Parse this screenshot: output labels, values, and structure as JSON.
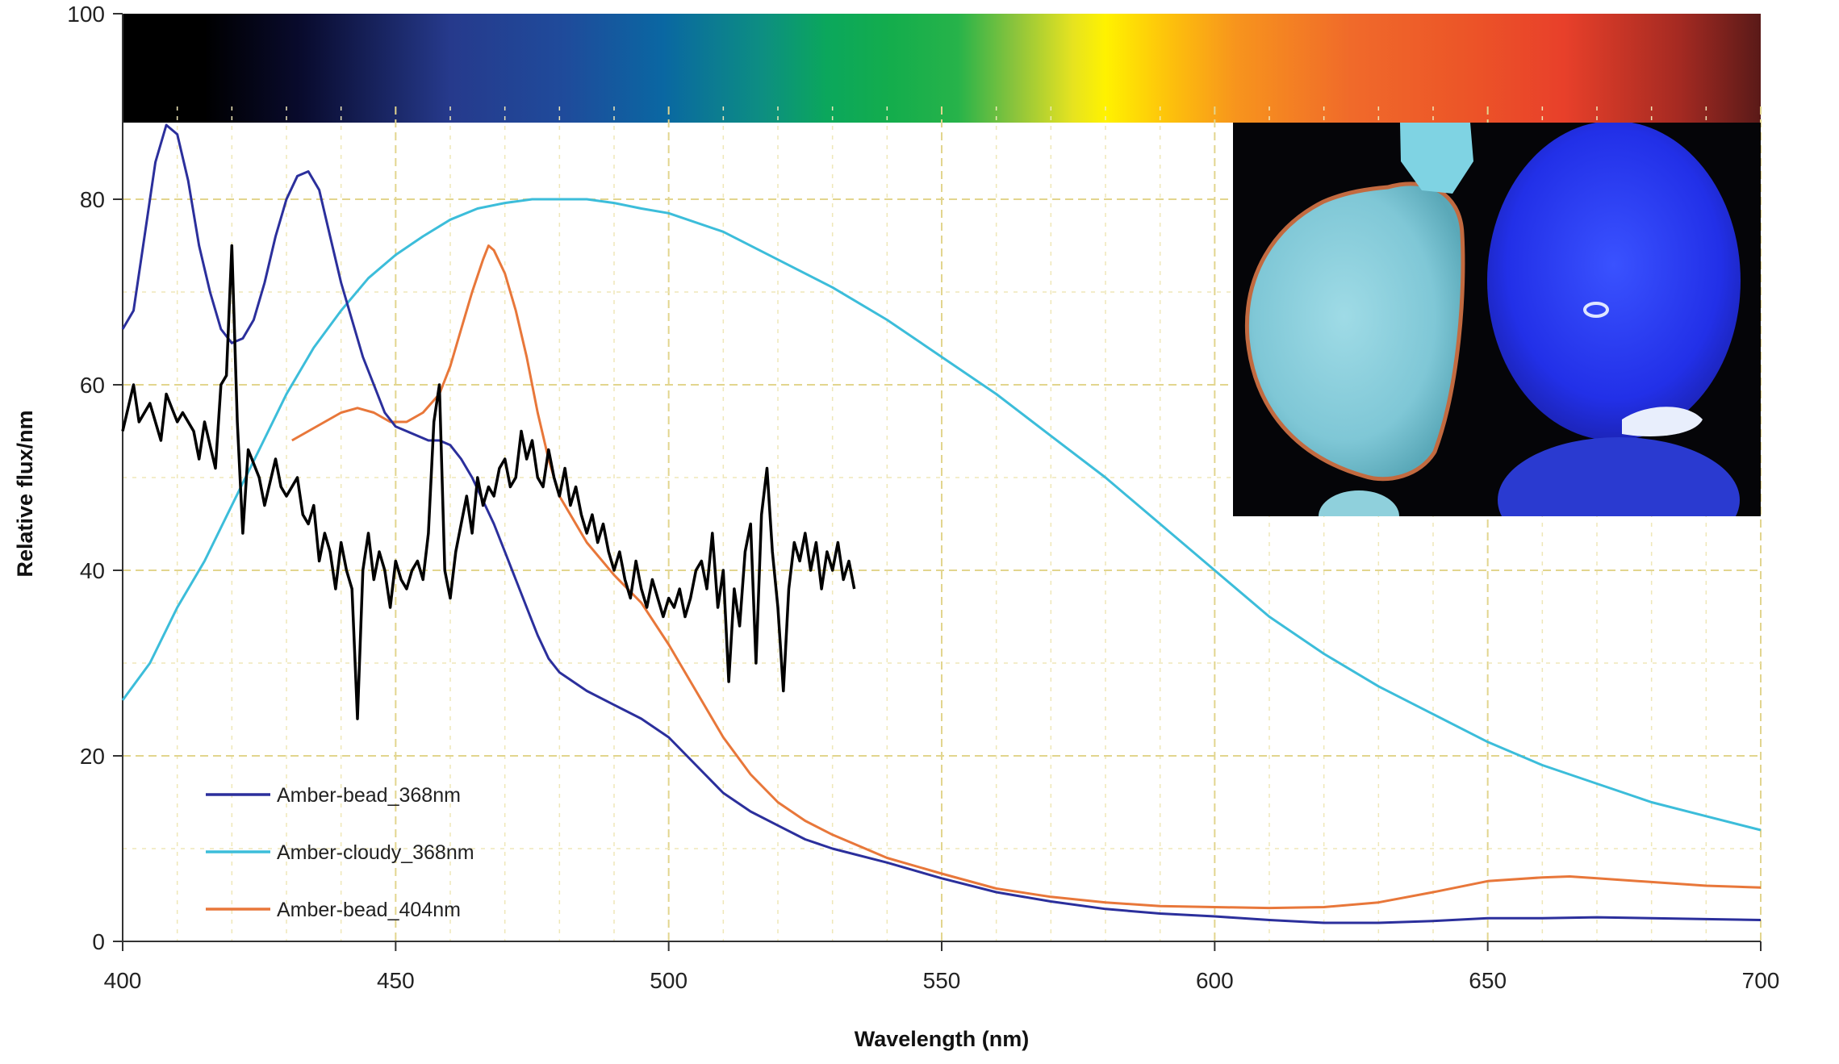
{
  "chart_data": {
    "type": "line",
    "title": "",
    "xlabel": "Wavelength (nm)",
    "ylabel": "Relative flux/nm",
    "xlim": [
      400,
      700
    ],
    "ylim": [
      0,
      100
    ],
    "x_ticks": [
      400,
      450,
      500,
      550,
      600,
      650,
      700
    ],
    "y_ticks": [
      0,
      20,
      40,
      60,
      80,
      100
    ],
    "grid": "dashed minor+major, yellow, from y=0 to y=90",
    "legend_position": "lower-left",
    "background_band": "visible spectrum color strip from y=90 to y=100",
    "inset": "photograph of fluorescing amber beads, top-right",
    "series": [
      {
        "name": "Amber-bead_368nm",
        "color": "#2b2f9c",
        "points": [
          [
            400,
            66
          ],
          [
            402,
            68
          ],
          [
            404,
            76
          ],
          [
            406,
            84
          ],
          [
            408,
            88
          ],
          [
            410,
            87
          ],
          [
            412,
            82
          ],
          [
            414,
            75
          ],
          [
            416,
            70
          ],
          [
            418,
            66
          ],
          [
            420,
            64.5
          ],
          [
            422,
            65
          ],
          [
            424,
            67
          ],
          [
            426,
            71
          ],
          [
            428,
            76
          ],
          [
            430,
            80
          ],
          [
            432,
            82.5
          ],
          [
            434,
            83
          ],
          [
            436,
            81
          ],
          [
            438,
            76
          ],
          [
            440,
            71
          ],
          [
            442,
            67
          ],
          [
            444,
            63
          ],
          [
            446,
            60
          ],
          [
            448,
            57
          ],
          [
            450,
            55.5
          ],
          [
            452,
            55
          ],
          [
            454,
            54.5
          ],
          [
            456,
            54
          ],
          [
            458,
            54
          ],
          [
            460,
            53.5
          ],
          [
            462,
            52
          ],
          [
            464,
            50
          ],
          [
            466,
            47.5
          ],
          [
            468,
            45
          ],
          [
            470,
            42
          ],
          [
            472,
            39
          ],
          [
            474,
            36
          ],
          [
            476,
            33
          ],
          [
            478,
            30.5
          ],
          [
            480,
            29
          ],
          [
            485,
            27
          ],
          [
            490,
            25.5
          ],
          [
            495,
            24
          ],
          [
            500,
            22
          ],
          [
            505,
            19
          ],
          [
            510,
            16
          ],
          [
            515,
            14
          ],
          [
            520,
            12.5
          ],
          [
            525,
            11
          ],
          [
            530,
            10
          ],
          [
            540,
            8.5
          ],
          [
            550,
            6.8
          ],
          [
            560,
            5.3
          ],
          [
            570,
            4.3
          ],
          [
            580,
            3.5
          ],
          [
            590,
            3
          ],
          [
            600,
            2.7
          ],
          [
            610,
            2.3
          ],
          [
            620,
            2
          ],
          [
            630,
            2
          ],
          [
            640,
            2.2
          ],
          [
            650,
            2.5
          ],
          [
            660,
            2.5
          ],
          [
            670,
            2.6
          ],
          [
            680,
            2.5
          ],
          [
            690,
            2.4
          ],
          [
            700,
            2.3
          ]
        ]
      },
      {
        "name": "Amber-cloudy_368nm",
        "color": "#3cbdda",
        "points": [
          [
            400,
            26
          ],
          [
            405,
            30
          ],
          [
            410,
            36
          ],
          [
            415,
            41
          ],
          [
            420,
            47
          ],
          [
            425,
            53
          ],
          [
            430,
            59
          ],
          [
            435,
            64
          ],
          [
            440,
            68
          ],
          [
            445,
            71.5
          ],
          [
            450,
            74
          ],
          [
            455,
            76
          ],
          [
            460,
            77.8
          ],
          [
            465,
            79
          ],
          [
            470,
            79.6
          ],
          [
            475,
            80
          ],
          [
            480,
            80
          ],
          [
            485,
            80
          ],
          [
            490,
            79.6
          ],
          [
            495,
            79
          ],
          [
            500,
            78.5
          ],
          [
            510,
            76.5
          ],
          [
            520,
            73.5
          ],
          [
            530,
            70.5
          ],
          [
            540,
            67
          ],
          [
            550,
            63
          ],
          [
            560,
            59
          ],
          [
            570,
            54.5
          ],
          [
            580,
            50
          ],
          [
            590,
            45
          ],
          [
            600,
            40
          ],
          [
            610,
            35
          ],
          [
            620,
            31
          ],
          [
            630,
            27.5
          ],
          [
            640,
            24.5
          ],
          [
            650,
            21.5
          ],
          [
            660,
            19
          ],
          [
            670,
            17
          ],
          [
            680,
            15
          ],
          [
            690,
            13.5
          ],
          [
            700,
            12
          ]
        ]
      },
      {
        "name": "Amber-bead_404nm",
        "color": "#e8773a",
        "points": [
          [
            431,
            54
          ],
          [
            434,
            55
          ],
          [
            437,
            56
          ],
          [
            440,
            57
          ],
          [
            443,
            57.5
          ],
          [
            446,
            57
          ],
          [
            449,
            56
          ],
          [
            452,
            56
          ],
          [
            455,
            57
          ],
          [
            458,
            59
          ],
          [
            460,
            62
          ],
          [
            462,
            66
          ],
          [
            464,
            70
          ],
          [
            466,
            73.5
          ],
          [
            467,
            75
          ],
          [
            468,
            74.5
          ],
          [
            470,
            72
          ],
          [
            472,
            68
          ],
          [
            474,
            63
          ],
          [
            476,
            57
          ],
          [
            478,
            52
          ],
          [
            480,
            48
          ],
          [
            485,
            43
          ],
          [
            490,
            39.5
          ],
          [
            495,
            36.5
          ],
          [
            500,
            32
          ],
          [
            505,
            27
          ],
          [
            510,
            22
          ],
          [
            515,
            18
          ],
          [
            520,
            15
          ],
          [
            525,
            13
          ],
          [
            530,
            11.5
          ],
          [
            540,
            9
          ],
          [
            550,
            7.3
          ],
          [
            560,
            5.7
          ],
          [
            570,
            4.8
          ],
          [
            580,
            4.2
          ],
          [
            590,
            3.8
          ],
          [
            600,
            3.7
          ],
          [
            610,
            3.6
          ],
          [
            620,
            3.7
          ],
          [
            630,
            4.2
          ],
          [
            640,
            5.3
          ],
          [
            650,
            6.5
          ],
          [
            660,
            6.9
          ],
          [
            665,
            7
          ],
          [
            670,
            6.8
          ],
          [
            680,
            6.4
          ],
          [
            690,
            6
          ],
          [
            700,
            5.8
          ]
        ]
      },
      {
        "name": "",
        "color": "#000000",
        "points": [
          [
            400,
            55
          ],
          [
            402,
            60
          ],
          [
            403,
            56
          ],
          [
            405,
            58
          ],
          [
            407,
            54
          ],
          [
            408,
            59
          ],
          [
            410,
            56
          ],
          [
            411,
            57
          ],
          [
            413,
            55
          ],
          [
            414,
            52
          ],
          [
            415,
            56
          ],
          [
            417,
            51
          ],
          [
            418,
            60
          ],
          [
            419,
            61
          ],
          [
            420,
            75
          ],
          [
            421,
            56
          ],
          [
            422,
            44
          ],
          [
            423,
            53
          ],
          [
            425,
            50
          ],
          [
            426,
            47
          ],
          [
            428,
            52
          ],
          [
            429,
            49
          ],
          [
            430,
            48
          ],
          [
            432,
            50
          ],
          [
            433,
            46
          ],
          [
            434,
            45
          ],
          [
            435,
            47
          ],
          [
            436,
            41
          ],
          [
            437,
            44
          ],
          [
            438,
            42
          ],
          [
            439,
            38
          ],
          [
            440,
            43
          ],
          [
            441,
            40
          ],
          [
            442,
            38
          ],
          [
            443,
            24
          ],
          [
            444,
            40
          ],
          [
            445,
            44
          ],
          [
            446,
            39
          ],
          [
            447,
            42
          ],
          [
            448,
            40
          ],
          [
            449,
            36
          ],
          [
            450,
            41
          ],
          [
            451,
            39
          ],
          [
            452,
            38
          ],
          [
            453,
            40
          ],
          [
            454,
            41
          ],
          [
            455,
            39
          ],
          [
            456,
            44
          ],
          [
            457,
            56
          ],
          [
            458,
            60
          ],
          [
            459,
            40
          ],
          [
            460,
            37
          ],
          [
            461,
            42
          ],
          [
            462,
            45
          ],
          [
            463,
            48
          ],
          [
            464,
            44
          ],
          [
            465,
            50
          ],
          [
            466,
            47
          ],
          [
            467,
            49
          ],
          [
            468,
            48
          ],
          [
            469,
            51
          ],
          [
            470,
            52
          ],
          [
            471,
            49
          ],
          [
            472,
            50
          ],
          [
            473,
            55
          ],
          [
            474,
            52
          ],
          [
            475,
            54
          ],
          [
            476,
            50
          ],
          [
            477,
            49
          ],
          [
            478,
            53
          ],
          [
            479,
            50
          ],
          [
            480,
            48
          ],
          [
            481,
            51
          ],
          [
            482,
            47
          ],
          [
            483,
            49
          ],
          [
            484,
            46
          ],
          [
            485,
            44
          ],
          [
            486,
            46
          ],
          [
            487,
            43
          ],
          [
            488,
            45
          ],
          [
            489,
            42
          ],
          [
            490,
            40
          ],
          [
            491,
            42
          ],
          [
            492,
            39
          ],
          [
            493,
            37
          ],
          [
            494,
            41
          ],
          [
            495,
            38
          ],
          [
            496,
            36
          ],
          [
            497,
            39
          ],
          [
            498,
            37
          ],
          [
            499,
            35
          ],
          [
            500,
            37
          ],
          [
            501,
            36
          ],
          [
            502,
            38
          ],
          [
            503,
            35
          ],
          [
            504,
            37
          ],
          [
            505,
            40
          ],
          [
            506,
            41
          ],
          [
            507,
            38
          ],
          [
            508,
            44
          ],
          [
            509,
            36
          ],
          [
            510,
            40
          ],
          [
            511,
            28
          ],
          [
            512,
            38
          ],
          [
            513,
            34
          ],
          [
            514,
            42
          ],
          [
            515,
            45
          ],
          [
            516,
            30
          ],
          [
            517,
            46
          ],
          [
            518,
            51
          ],
          [
            519,
            42
          ],
          [
            520,
            36
          ],
          [
            521,
            27
          ],
          [
            522,
            38
          ],
          [
            523,
            43
          ],
          [
            524,
            41
          ],
          [
            525,
            44
          ],
          [
            526,
            40
          ],
          [
            527,
            43
          ],
          [
            528,
            38
          ],
          [
            529,
            42
          ],
          [
            530,
            40
          ],
          [
            531,
            43
          ],
          [
            532,
            39
          ],
          [
            533,
            41
          ],
          [
            534,
            38
          ]
        ]
      }
    ]
  },
  "legend": {
    "items": [
      {
        "label": "Amber-bead_368nm",
        "color": "#2b2f9c"
      },
      {
        "label": "Amber-cloudy_368nm",
        "color": "#3cbdda"
      },
      {
        "label": "Amber-bead_404nm",
        "color": "#e8773a"
      }
    ]
  }
}
